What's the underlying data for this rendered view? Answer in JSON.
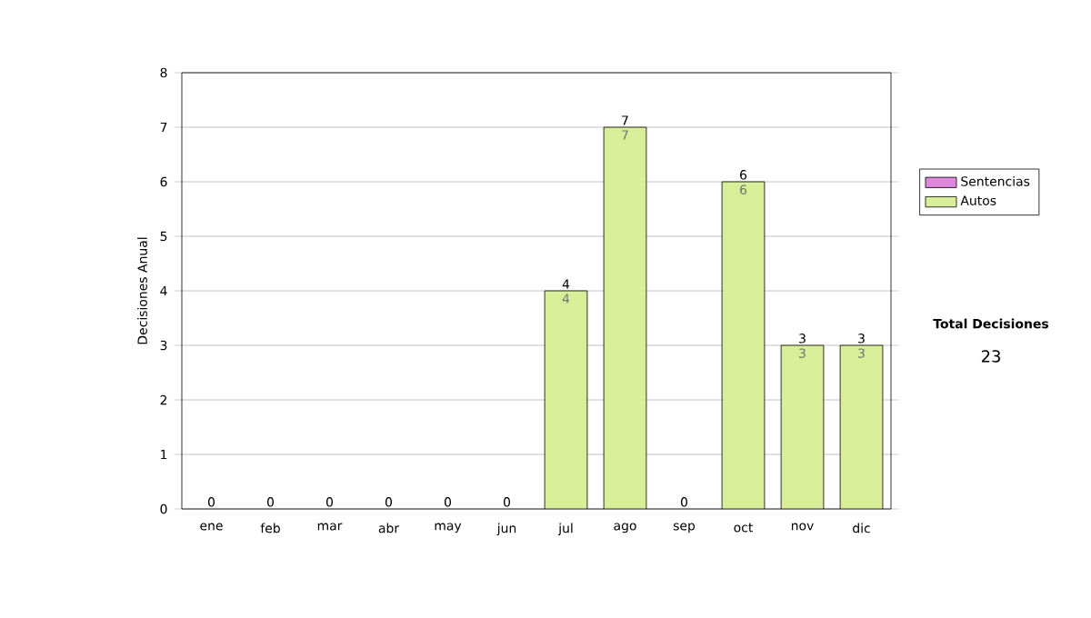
{
  "chart_data": {
    "type": "bar",
    "stacked": true,
    "ylabel": "Decisiones Anual",
    "categories": [
      "ene",
      "feb",
      "mar",
      "abr",
      "may",
      "jun",
      "jul",
      "ago",
      "sep",
      "oct",
      "nov",
      "dic"
    ],
    "series": [
      {
        "name": "Sentencias",
        "color": "#dd88dd",
        "values": [
          0,
          0,
          0,
          0,
          0,
          0,
          0,
          0,
          0,
          0,
          0,
          0
        ]
      },
      {
        "name": "Autos",
        "color": "#d8ee98",
        "values": [
          0,
          0,
          0,
          0,
          0,
          0,
          4,
          7,
          0,
          6,
          3,
          3
        ],
        "value_labels": [
          null,
          null,
          null,
          null,
          null,
          null,
          "4",
          "7",
          null,
          "6",
          "3",
          "3"
        ]
      }
    ],
    "totals": [
      "0",
      "0",
      "0",
      "0",
      "0",
      "0",
      "4",
      "7",
      "0",
      "6",
      "3",
      "3"
    ],
    "ylim": [
      0,
      8
    ],
    "yticks": [
      0,
      1,
      2,
      3,
      4,
      5,
      6,
      7,
      8
    ],
    "grid": "y",
    "legend": "right",
    "annotations": [
      "Total Decisiones",
      "23"
    ]
  }
}
